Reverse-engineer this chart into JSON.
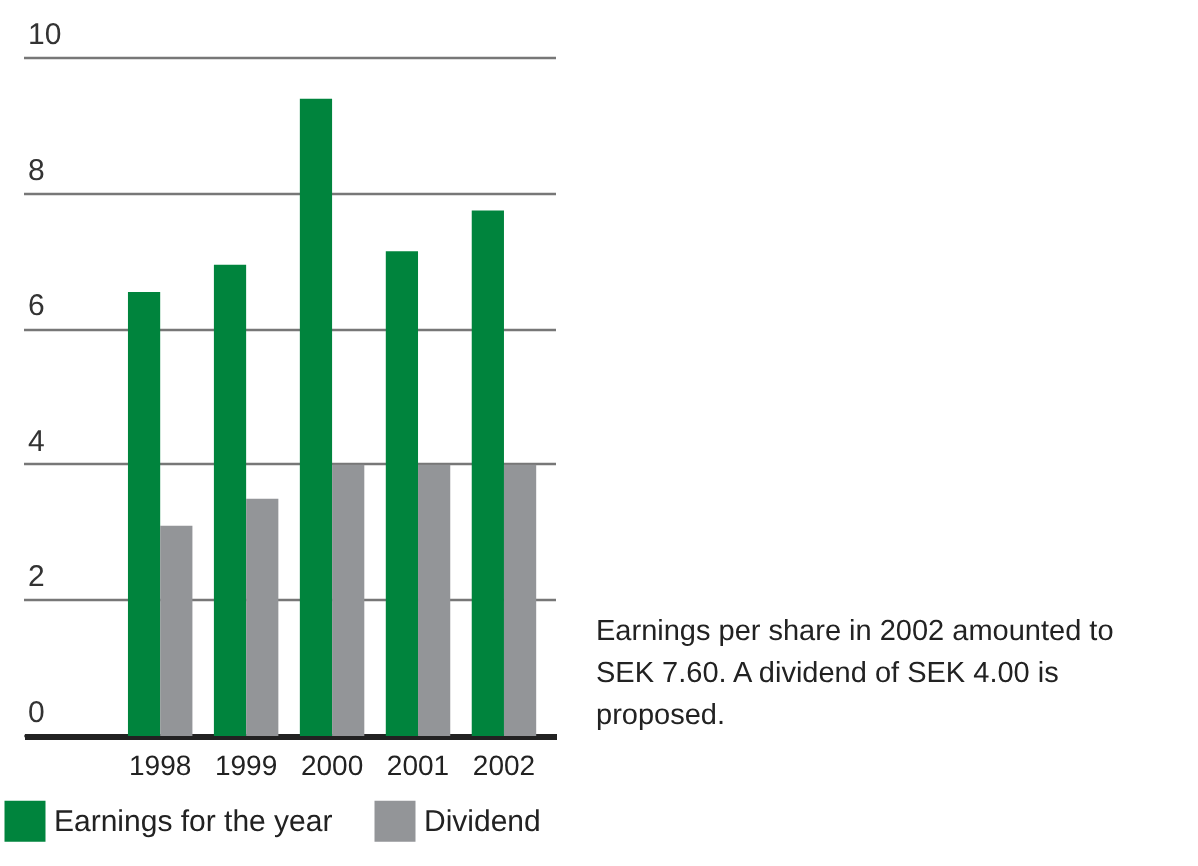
{
  "chart_data": {
    "type": "bar",
    "categories": [
      "1998",
      "1999",
      "2000",
      "2001",
      "2002"
    ],
    "series": [
      {
        "name": "Earnings for the year",
        "color": "#00843d",
        "values": [
          6.55,
          6.95,
          9.4,
          7.15,
          7.75
        ]
      },
      {
        "name": "Dividend",
        "color": "#939598",
        "values": [
          3.1,
          3.5,
          4,
          4,
          4
        ]
      }
    ],
    "ylim": [
      0,
      10
    ],
    "yticks": [
      0,
      2,
      4,
      6,
      8,
      10
    ],
    "grid": "y",
    "legend": "bottom",
    "annotations": [
      "Earnings per share in 2002 amounted to SEK 7.60. A dividend of SEK 4.00 is proposed."
    ]
  }
}
